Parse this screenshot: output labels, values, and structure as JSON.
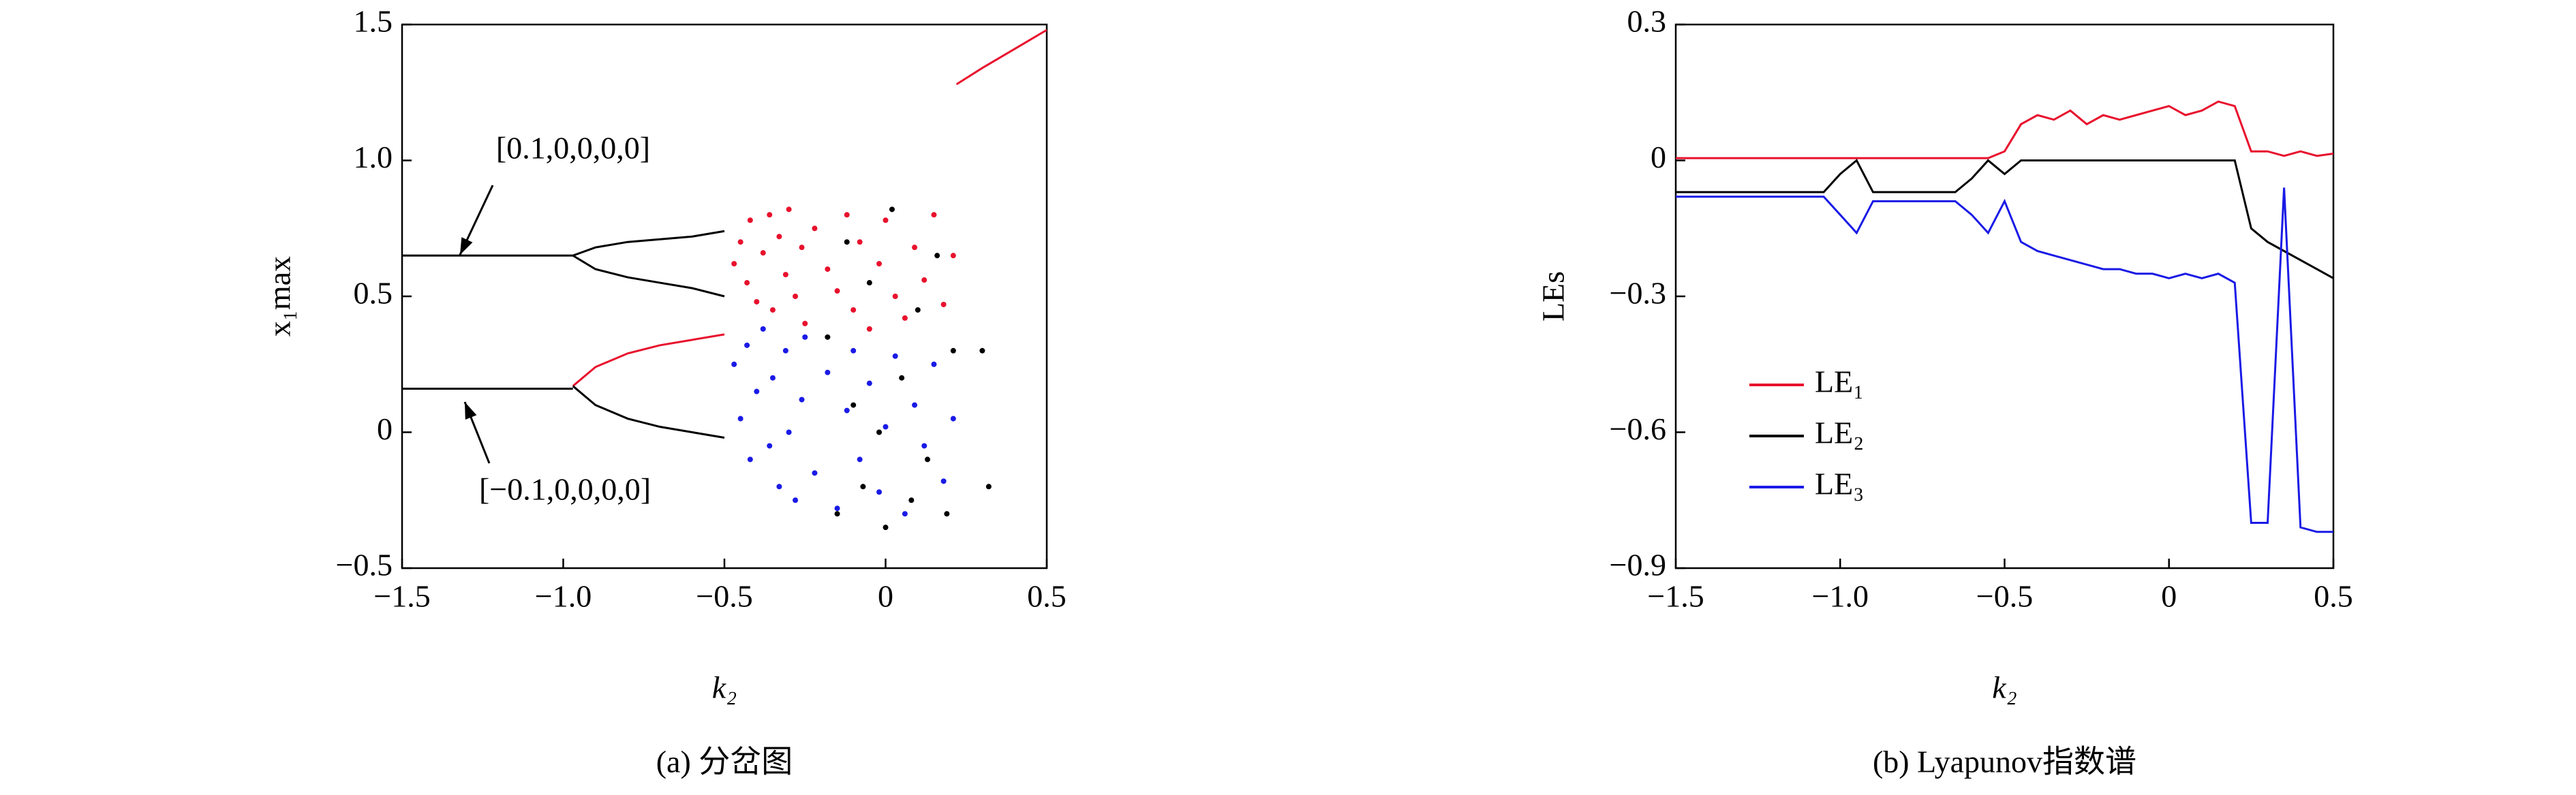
{
  "chart_data": [
    {
      "type": "scatter",
      "xlabel": "k₂",
      "ylabel": "x₁max",
      "caption": "(a) 分岔图",
      "xlim": [
        -1.5,
        0.5
      ],
      "ylim": [
        -0.5,
        1.5
      ],
      "xticks": [
        {
          "value": -1.5,
          "label": "−1.5"
        },
        {
          "value": -1,
          "label": "−1.0"
        },
        {
          "value": -0.5,
          "label": "−0.5"
        },
        0,
        0.5
      ],
      "yticks": [
        {
          "value": -0.5,
          "label": "−0.5"
        },
        0,
        0.5,
        {
          "value": 1,
          "label": "1.0"
        },
        1.5
      ],
      "grid": false,
      "annotations": [
        {
          "text": "[0.1,0,0,0,0]"
        },
        {
          "text": "[−0.1,0,0,0,0]"
        }
      ],
      "series": [
        {
          "color": "#e8112d",
          "mode": "markers",
          "x": [
            -0.47,
            -0.45,
            -0.43,
            -0.42,
            -0.4,
            -0.38,
            -0.36,
            -0.35,
            -0.33,
            -0.31,
            -0.3,
            -0.28,
            -0.26,
            -0.25,
            -0.22,
            -0.18,
            -0.15,
            -0.12,
            -0.1,
            -0.08,
            -0.05,
            -0.02,
            0.0,
            0.03,
            0.06,
            0.09,
            0.12,
            0.15,
            0.18,
            0.21
          ],
          "y": [
            0.62,
            0.7,
            0.55,
            0.78,
            0.48,
            0.66,
            0.8,
            0.45,
            0.72,
            0.58,
            0.82,
            0.5,
            0.68,
            0.4,
            0.75,
            0.6,
            0.52,
            0.8,
            0.45,
            0.7,
            0.38,
            0.62,
            0.78,
            0.5,
            0.42,
            0.68,
            0.56,
            0.8,
            0.47,
            0.65
          ]
        },
        {
          "color": "#1a1ae6",
          "mode": "markers",
          "x": [
            -0.47,
            -0.45,
            -0.43,
            -0.42,
            -0.4,
            -0.38,
            -0.36,
            -0.35,
            -0.33,
            -0.31,
            -0.3,
            -0.28,
            -0.26,
            -0.25,
            -0.22,
            -0.18,
            -0.15,
            -0.12,
            -0.1,
            -0.08,
            -0.05,
            -0.02,
            0.0,
            0.03,
            0.06,
            0.09,
            0.12,
            0.15,
            0.18,
            0.21
          ],
          "y": [
            0.25,
            0.05,
            0.32,
            -0.1,
            0.15,
            0.38,
            -0.05,
            0.2,
            -0.2,
            0.3,
            0.0,
            -0.25,
            0.12,
            0.35,
            -0.15,
            0.22,
            -0.28,
            0.08,
            0.3,
            -0.1,
            0.18,
            -0.22,
            0.02,
            0.28,
            -0.3,
            0.1,
            -0.05,
            0.25,
            -0.18,
            0.05
          ]
        },
        {
          "color": "#000000",
          "mode": "markers",
          "x": [
            -0.18,
            -0.15,
            -0.12,
            -0.1,
            -0.07,
            -0.05,
            -0.02,
            0.0,
            0.02,
            0.05,
            0.08,
            0.1,
            0.13,
            0.16,
            0.19,
            0.21,
            0.3,
            0.32
          ],
          "y": [
            0.35,
            -0.3,
            0.7,
            0.1,
            -0.2,
            0.55,
            0.0,
            -0.35,
            0.82,
            0.2,
            -0.25,
            0.45,
            -0.1,
            0.65,
            -0.3,
            0.3,
            0.3,
            -0.2
          ]
        },
        {
          "color": "#000000",
          "mode": "lines",
          "x": [
            -1.5,
            -0.97
          ],
          "y": [
            0.65,
            0.65
          ]
        },
        {
          "color": "#000000",
          "mode": "lines",
          "x": [
            -0.97,
            -0.9,
            -0.8,
            -0.7,
            -0.6,
            -0.5
          ],
          "y": [
            0.65,
            0.68,
            0.7,
            0.71,
            0.72,
            0.74
          ]
        },
        {
          "color": "#000000",
          "mode": "lines",
          "x": [
            -0.97,
            -0.9,
            -0.8,
            -0.7,
            -0.6,
            -0.5
          ],
          "y": [
            0.65,
            0.6,
            0.57,
            0.55,
            0.53,
            0.5
          ]
        },
        {
          "color": "#000000",
          "mode": "lines",
          "x": [
            -1.5,
            -0.97
          ],
          "y": [
            0.16,
            0.16
          ]
        },
        {
          "color": "#e8112d",
          "mode": "lines",
          "x": [
            -0.97,
            -0.9,
            -0.8,
            -0.7,
            -0.6,
            -0.5
          ],
          "y": [
            0.17,
            0.24,
            0.29,
            0.32,
            0.34,
            0.36
          ]
        },
        {
          "color": "#000000",
          "mode": "lines",
          "x": [
            -0.97,
            -0.9,
            -0.8,
            -0.7,
            -0.6,
            -0.5
          ],
          "y": [
            0.17,
            0.1,
            0.05,
            0.02,
            0.0,
            -0.02
          ]
        },
        {
          "color": "#e8112d",
          "mode": "lines",
          "x": [
            0.22,
            0.3,
            0.4,
            0.5
          ],
          "y": [
            1.28,
            1.34,
            1.41,
            1.48
          ]
        }
      ]
    },
    {
      "type": "line",
      "xlabel": "k₂",
      "ylabel": "LEs",
      "caption": "(b) Lyapunov指数谱",
      "xlim": [
        -1.5,
        0.5
      ],
      "ylim": [
        -0.9,
        0.3
      ],
      "xticks": [
        {
          "value": -1.5,
          "label": "−1.5"
        },
        {
          "value": -1,
          "label": "−1.0"
        },
        {
          "value": -0.5,
          "label": "−0.5"
        },
        0,
        0.5
      ],
      "yticks": [
        {
          "value": -0.9,
          "label": "−0.9"
        },
        {
          "value": -0.6,
          "label": "−0.6"
        },
        {
          "value": -0.3,
          "label": "−0.3"
        },
        0,
        0.3
      ],
      "grid": false,
      "legend": "center left",
      "x": [
        -1.5,
        -1.45,
        -1.4,
        -1.35,
        -1.3,
        -1.25,
        -1.2,
        -1.15,
        -1.1,
        -1.05,
        -1.0,
        -0.95,
        -0.9,
        -0.85,
        -0.8,
        -0.75,
        -0.7,
        -0.65,
        -0.6,
        -0.55,
        -0.5,
        -0.45,
        -0.4,
        -0.35,
        -0.3,
        -0.25,
        -0.2,
        -0.15,
        -0.1,
        -0.05,
        0.0,
        0.05,
        0.1,
        0.15,
        0.2,
        0.25,
        0.3,
        0.35,
        0.4,
        0.45,
        0.5
      ],
      "series": [
        {
          "name": "LE₁",
          "color": "#e8112d",
          "values": [
            0.005,
            0.005,
            0.005,
            0.005,
            0.005,
            0.005,
            0.005,
            0.005,
            0.005,
            0.005,
            0.005,
            0.005,
            0.005,
            0.005,
            0.005,
            0.005,
            0.005,
            0.005,
            0.005,
            0.005,
            0.02,
            0.08,
            0.1,
            0.09,
            0.11,
            0.08,
            0.1,
            0.09,
            0.1,
            0.11,
            0.12,
            0.1,
            0.11,
            0.13,
            0.12,
            0.02,
            0.02,
            0.01,
            0.02,
            0.01,
            0.015
          ]
        },
        {
          "name": "LE₂",
          "color": "#000000",
          "values": [
            -0.07,
            -0.07,
            -0.07,
            -0.07,
            -0.07,
            -0.07,
            -0.07,
            -0.07,
            -0.07,
            -0.07,
            -0.03,
            0.0,
            -0.07,
            -0.07,
            -0.07,
            -0.07,
            -0.07,
            -0.07,
            -0.04,
            0.0,
            -0.03,
            0.0,
            0.0,
            0.0,
            0.0,
            0.0,
            0.0,
            0.0,
            0.0,
            0.0,
            0.0,
            0.0,
            0.0,
            0.0,
            0.0,
            -0.15,
            -0.18,
            -0.2,
            -0.22,
            -0.24,
            -0.26
          ]
        },
        {
          "name": "LE₃",
          "color": "#1a1ae6",
          "values": [
            -0.08,
            -0.08,
            -0.08,
            -0.08,
            -0.08,
            -0.08,
            -0.08,
            -0.08,
            -0.08,
            -0.08,
            -0.12,
            -0.16,
            -0.09,
            -0.09,
            -0.09,
            -0.09,
            -0.09,
            -0.09,
            -0.12,
            -0.16,
            -0.09,
            -0.18,
            -0.2,
            -0.21,
            -0.22,
            -0.23,
            -0.24,
            -0.24,
            -0.25,
            -0.25,
            -0.26,
            -0.25,
            -0.26,
            -0.25,
            -0.27,
            -0.8,
            -0.8,
            -0.06,
            -0.81,
            -0.82,
            -0.82
          ]
        }
      ]
    }
  ]
}
